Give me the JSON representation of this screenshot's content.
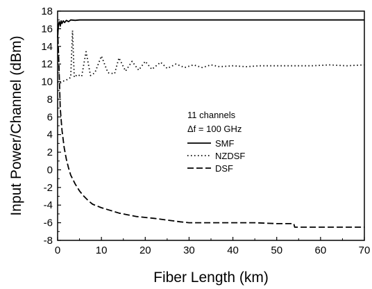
{
  "chart_data": {
    "type": "line",
    "title": "",
    "xlabel": "Fiber Length (km)",
    "ylabel": "Input Power/Channel (dBm)",
    "xlim": [
      0,
      70
    ],
    "ylim": [
      -8,
      18
    ],
    "xticks": [
      0,
      10,
      20,
      30,
      40,
      50,
      60,
      70
    ],
    "yticks": [
      -8,
      -6,
      -4,
      -2,
      0,
      2,
      4,
      6,
      8,
      10,
      12,
      14,
      16,
      18
    ],
    "grid": false,
    "legend": {
      "placement": "center-right",
      "header": [
        "11 channels",
        "Δf = 100 GHz"
      ]
    },
    "series": [
      {
        "name": "SMF",
        "style": "solid",
        "color": "#000000",
        "x": [
          0,
          0.2,
          0.4,
          0.6,
          0.8,
          1.0,
          1.3,
          1.6,
          2.0,
          2.5,
          3,
          4,
          5,
          70
        ],
        "y": [
          15.0,
          16.5,
          16.8,
          16.3,
          16.9,
          16.6,
          16.9,
          16.7,
          16.95,
          16.8,
          17.0,
          16.95,
          17.0,
          17.0
        ]
      },
      {
        "name": "NZDSF",
        "style": "dotted",
        "color": "#000000",
        "x": [
          0,
          0.5,
          1,
          1.5,
          2,
          2.5,
          3.0,
          3.4,
          3.8,
          4.5,
          5.5,
          6.5,
          7.5,
          8.5,
          10,
          11.5,
          13,
          14,
          15.5,
          17,
          18.5,
          20,
          21.5,
          23.5,
          25,
          27,
          29,
          31,
          33,
          35,
          37,
          40,
          43,
          46,
          50,
          54,
          58,
          62,
          66,
          70
        ],
        "y": [
          10.0,
          9.8,
          10.0,
          10.1,
          10.2,
          10.3,
          10.5,
          15.8,
          10.5,
          10.8,
          10.6,
          13.4,
          10.7,
          11.0,
          12.9,
          11.0,
          10.9,
          12.7,
          11.2,
          12.3,
          11.3,
          12.3,
          11.4,
          12.2,
          11.5,
          12.0,
          11.6,
          11.9,
          11.6,
          11.9,
          11.7,
          11.8,
          11.7,
          11.8,
          11.8,
          11.8,
          11.8,
          11.9,
          11.8,
          11.9
        ]
      },
      {
        "name": "DSF",
        "style": "dashed",
        "color": "#000000",
        "x": [
          0,
          0.3,
          0.6,
          1.0,
          1.5,
          2,
          2.5,
          3,
          4,
          5,
          6,
          7,
          8,
          9,
          10,
          12,
          14,
          16,
          18,
          20,
          22,
          25,
          28,
          30,
          35,
          40,
          45,
          50,
          53.9,
          54.1,
          60,
          65,
          70
        ],
        "y": [
          16.0,
          12.0,
          7.0,
          4.5,
          2.5,
          1.2,
          0.2,
          -0.6,
          -1.6,
          -2.4,
          -3.0,
          -3.5,
          -3.9,
          -4.1,
          -4.3,
          -4.6,
          -4.9,
          -5.1,
          -5.3,
          -5.4,
          -5.5,
          -5.7,
          -5.9,
          -6.0,
          -6.0,
          -6.0,
          -6.0,
          -6.1,
          -6.1,
          -6.5,
          -6.5,
          -6.5,
          -6.5
        ]
      }
    ]
  }
}
